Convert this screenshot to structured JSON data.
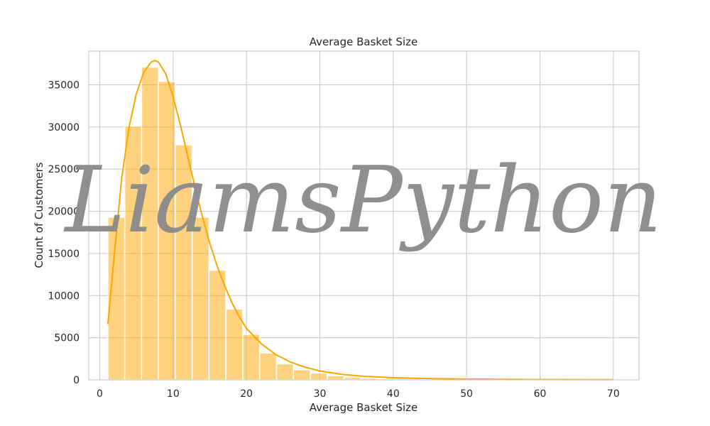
{
  "chart_data": {
    "type": "histogram",
    "title": "Average Basket Size",
    "xlabel": "Average Basket Size",
    "ylabel": "Count of Customers",
    "xlim": [
      -1.5,
      73.5
    ],
    "ylim": [
      0,
      39000
    ],
    "xticks": [
      0,
      10,
      20,
      30,
      40,
      50,
      60,
      70
    ],
    "yticks": [
      0,
      5000,
      10000,
      15000,
      20000,
      25000,
      30000,
      35000
    ],
    "grid": true,
    "bin_edges": [
      1.1,
      3.4,
      5.7,
      8.0,
      10.3,
      12.6,
      14.9,
      17.2,
      19.5,
      21.8,
      24.1,
      26.4,
      28.7,
      31.0,
      33.3,
      35.6,
      37.9,
      40.2,
      42.5,
      44.8,
      47.1,
      49.4,
      51.7,
      54.0,
      56.3,
      58.6,
      60.9,
      63.2,
      65.5,
      67.8,
      70.1
    ],
    "counts": [
      19300,
      30100,
      37100,
      35400,
      27900,
      19300,
      13000,
      8400,
      5400,
      3200,
      1900,
      1200,
      800,
      500,
      300,
      200,
      150,
      110,
      80,
      60,
      45,
      35,
      25,
      20,
      15,
      12,
      10,
      8,
      6,
      5
    ],
    "kde": {
      "x": [
        1.1,
        2,
        3,
        4,
        5,
        6,
        7,
        7.5,
        8,
        9,
        10,
        11,
        12,
        13,
        14,
        15,
        16,
        17,
        18,
        19,
        20,
        22,
        24,
        26,
        28,
        30,
        33,
        36,
        40,
        45,
        50,
        55,
        60,
        65,
        70
      ],
      "y": [
        6600,
        15000,
        24000,
        30000,
        34000,
        36500,
        37700,
        37900,
        37700,
        36300,
        33600,
        30200,
        26500,
        22800,
        19300,
        16200,
        13500,
        11200,
        9200,
        7500,
        6100,
        4300,
        3000,
        2100,
        1500,
        1050,
        650,
        420,
        250,
        150,
        90,
        60,
        40,
        30,
        20
      ]
    },
    "bar_color": "#FFA500",
    "bar_alpha": 0.5,
    "line_color": "#FFA500"
  },
  "watermark": "LiamsPython"
}
